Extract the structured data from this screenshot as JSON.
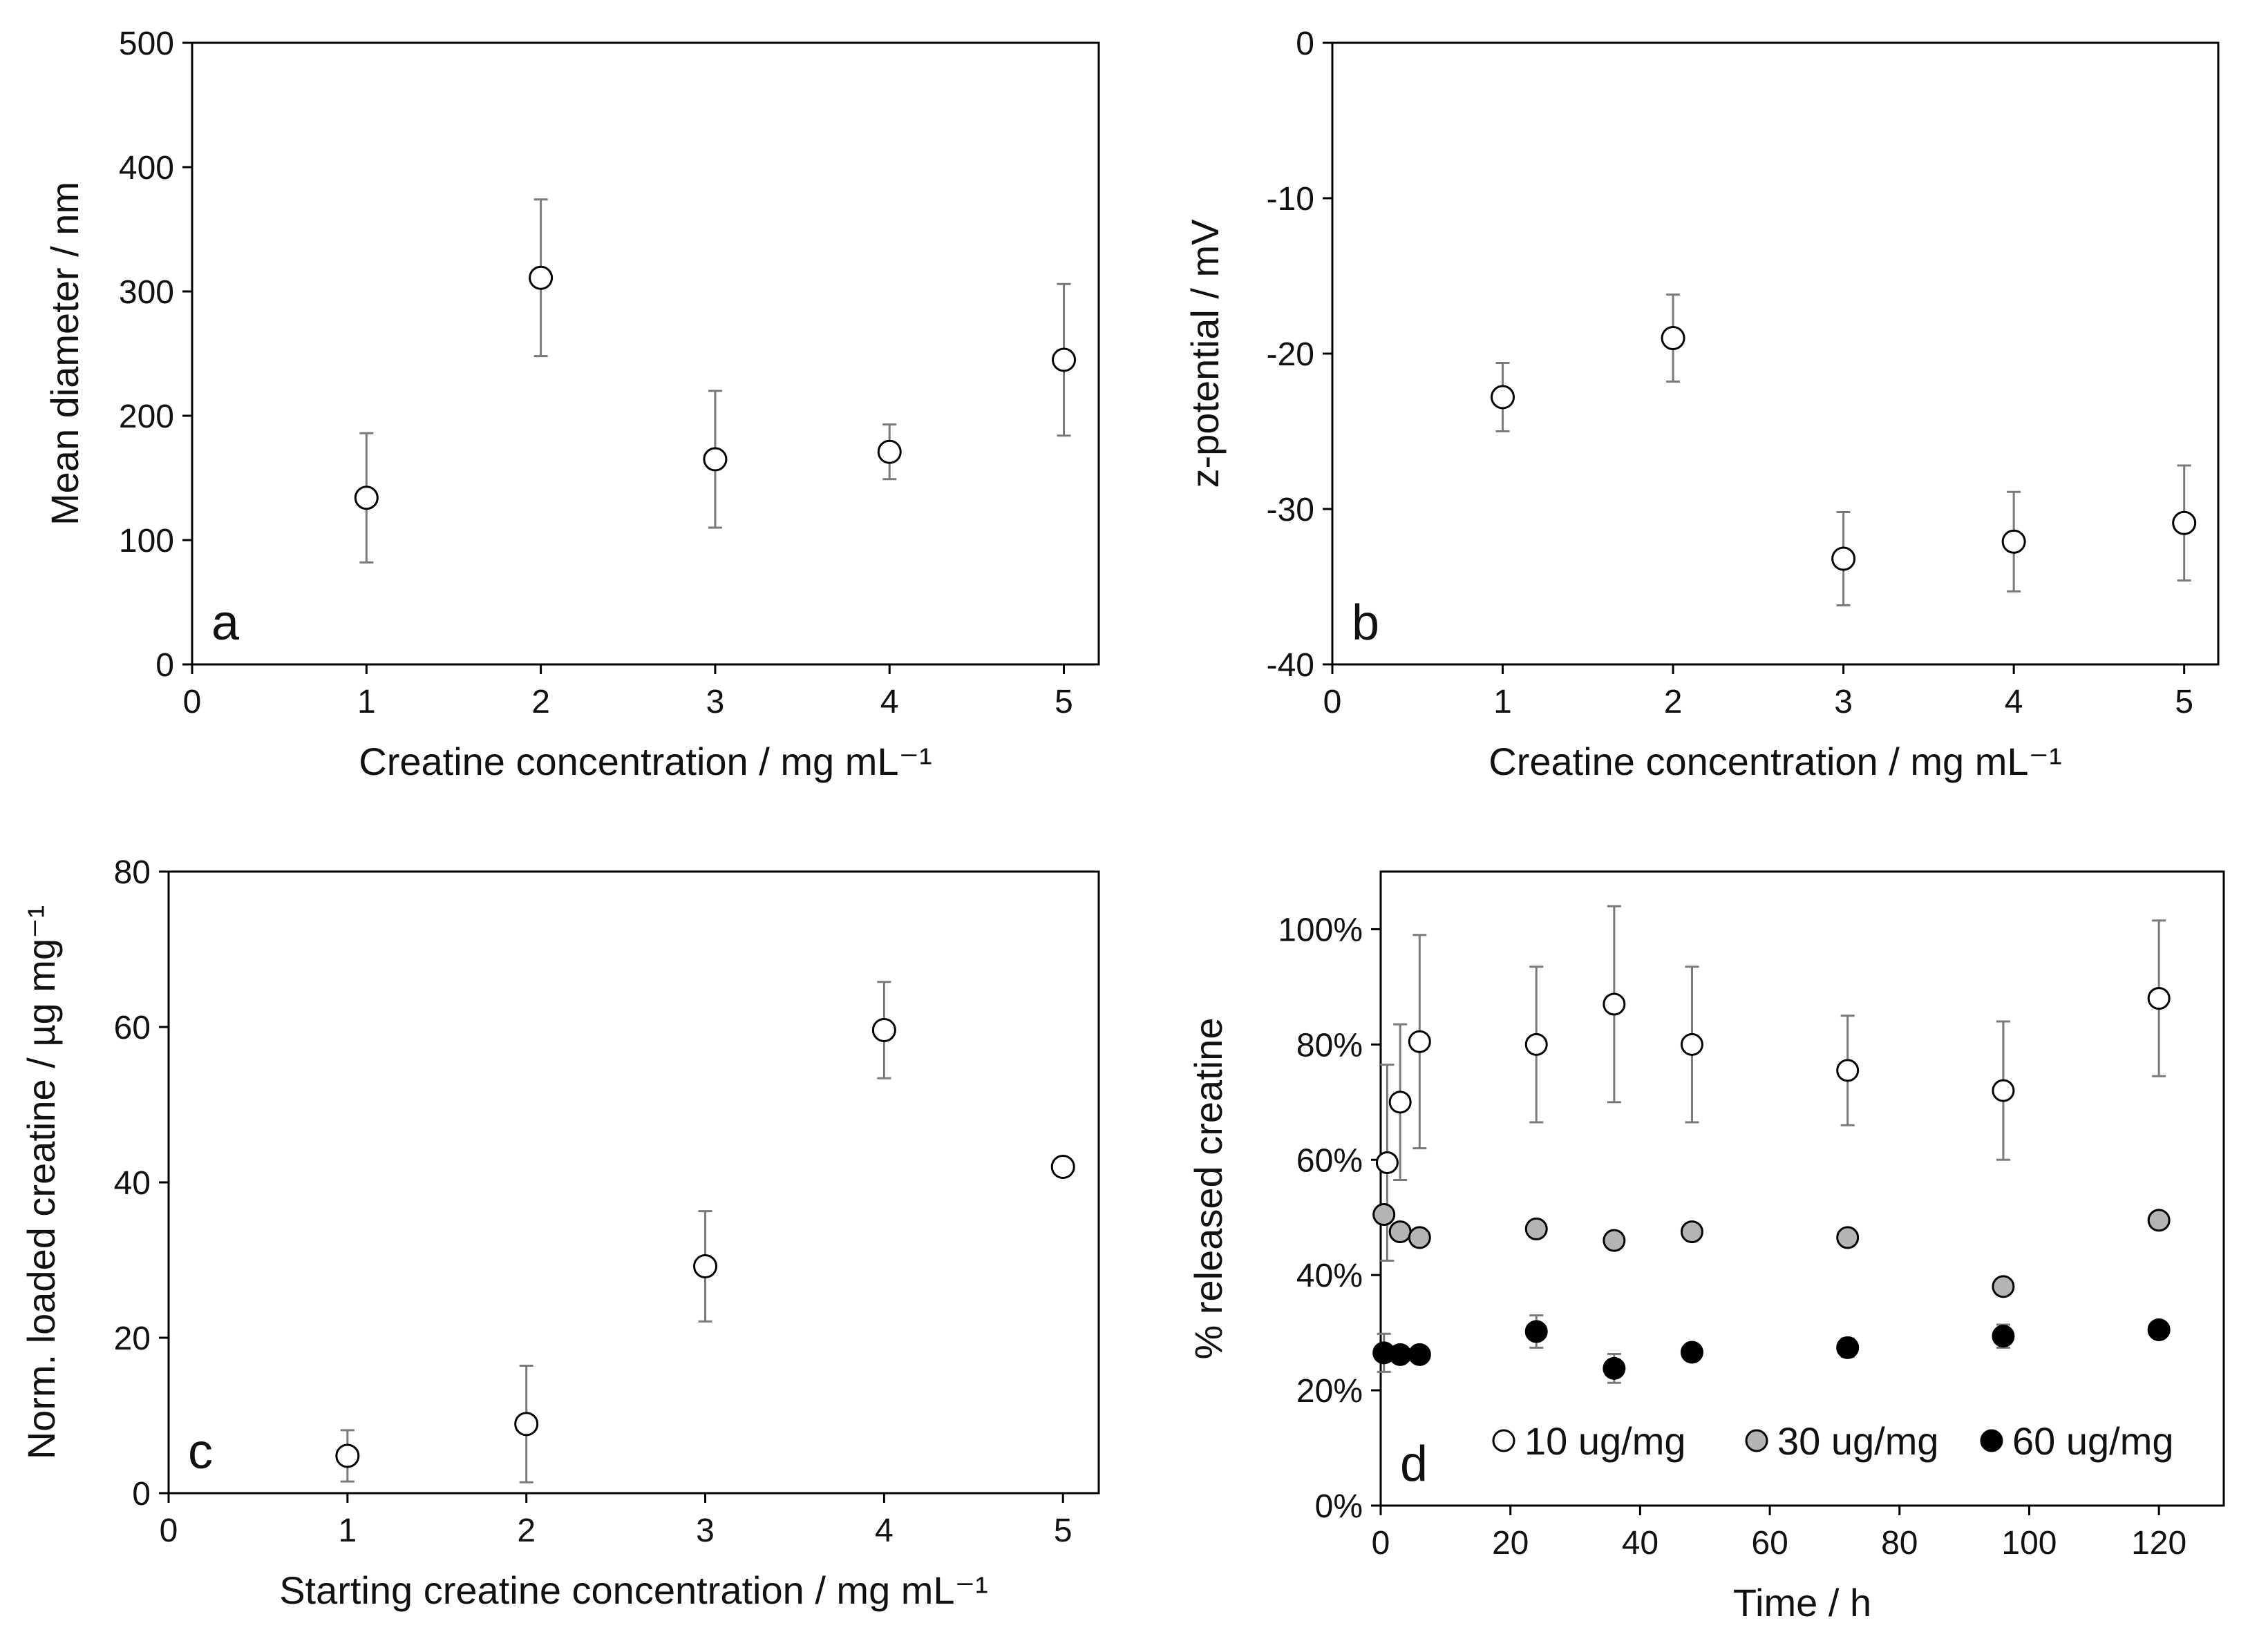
{
  "chart_data": [
    {
      "type": "scatter",
      "panel_label": "a",
      "xlabel": "Creatine concentration / mg mL⁻¹",
      "ylabel": "Mean diameter / nm",
      "xlim": [
        0,
        5.2
      ],
      "ylim": [
        0,
        500
      ],
      "x_ticks": [
        0,
        1,
        2,
        3,
        4,
        5
      ],
      "x_tick_labels": [
        "0",
        "1",
        "2",
        "3",
        "4",
        "5"
      ],
      "y_ticks": [
        0,
        100,
        200,
        300,
        400,
        500
      ],
      "y_tick_labels": [
        "0",
        "100",
        "200",
        "300",
        "400",
        "500"
      ],
      "series": [
        {
          "name": "Mean diameter",
          "marker": "open",
          "x": [
            1,
            2,
            3,
            4,
            5
          ],
          "y": [
            134,
            311,
            165,
            171,
            245
          ],
          "err": [
            52,
            63,
            55,
            22,
            61
          ]
        }
      ]
    },
    {
      "type": "scatter",
      "panel_label": "b",
      "xlabel": "Creatine concentration / mg mL⁻¹",
      "ylabel": "z-potential / mV",
      "xlim": [
        0,
        5.2
      ],
      "ylim": [
        -40,
        0
      ],
      "x_ticks": [
        0,
        1,
        2,
        3,
        4,
        5
      ],
      "x_tick_labels": [
        "0",
        "1",
        "2",
        "3",
        "4",
        "5"
      ],
      "y_ticks": [
        0,
        -10,
        -20,
        -30,
        -40
      ],
      "y_tick_labels": [
        "0",
        "-10",
        "-20",
        "-30",
        "-40"
      ],
      "series": [
        {
          "name": "z-potential",
          "marker": "open",
          "x": [
            1,
            2,
            3,
            4,
            5
          ],
          "y": [
            -22.8,
            -19.0,
            -33.2,
            -32.1,
            -30.9
          ],
          "err": [
            2.2,
            2.8,
            3.0,
            3.2,
            3.7
          ]
        }
      ]
    },
    {
      "type": "scatter",
      "panel_label": "c",
      "xlabel": "Starting creatine concentration / mg mL⁻¹",
      "ylabel": "Norm. loaded creatine / µg mg⁻¹",
      "xlim": [
        0,
        5.2
      ],
      "ylim": [
        0,
        80
      ],
      "x_ticks": [
        0,
        1,
        2,
        3,
        4,
        5
      ],
      "x_tick_labels": [
        "0",
        "1",
        "2",
        "3",
        "4",
        "5"
      ],
      "y_ticks": [
        0,
        20,
        40,
        60,
        80
      ],
      "y_tick_labels": [
        "0",
        "20",
        "40",
        "60",
        "80"
      ],
      "series": [
        {
          "name": "Loaded creatine",
          "marker": "open",
          "x": [
            1,
            2,
            3,
            4,
            5
          ],
          "y": [
            4.8,
            8.9,
            29.2,
            59.6,
            42.0
          ],
          "err": [
            3.3,
            7.5,
            7.1,
            6.2,
            0.5
          ]
        }
      ]
    },
    {
      "type": "scatter",
      "panel_label": "d",
      "xlabel": "Time / h",
      "ylabel": "% released creatine",
      "xlim": [
        0,
        130
      ],
      "ylim": [
        0,
        110
      ],
      "x_ticks": [
        0,
        20,
        40,
        60,
        80,
        100,
        120
      ],
      "x_tick_labels": [
        "0",
        "20",
        "40",
        "60",
        "80",
        "100",
        "120"
      ],
      "y_ticks": [
        0,
        20,
        40,
        60,
        80,
        100
      ],
      "y_tick_labels": [
        "0%",
        "20%",
        "40%",
        "60%",
        "80%",
        "100%"
      ],
      "legend_position": "bottom-inside",
      "series": [
        {
          "name": "10 ug/mg",
          "marker": "open",
          "x": [
            1,
            3,
            6,
            24,
            36,
            48,
            72,
            96,
            120
          ],
          "y": [
            59.5,
            70,
            80.5,
            80,
            87,
            80,
            75.5,
            72,
            88
          ],
          "err": [
            17,
            13.5,
            18.5,
            13.5,
            17,
            13.5,
            9.5,
            12,
            13.5
          ]
        },
        {
          "name": "30 ug/mg",
          "marker": "gray",
          "x": [
            0.5,
            3,
            6,
            24,
            36,
            48,
            72,
            96,
            120
          ],
          "y": [
            50.5,
            47.5,
            46.5,
            48,
            46,
            47.5,
            46.5,
            38,
            49.5
          ],
          "err": [
            0,
            0,
            0,
            0,
            0,
            0,
            0,
            0,
            0
          ]
        },
        {
          "name": "60 ug/mg",
          "marker": "filled",
          "x": [
            0.5,
            3,
            6,
            24,
            36,
            48,
            72,
            96,
            120
          ],
          "y": [
            26.5,
            26.2,
            26.2,
            30.2,
            23.8,
            26.6,
            27.4,
            29.4,
            30.5
          ],
          "err": [
            3.3,
            0,
            0,
            2.8,
            2.5,
            0,
            1.6,
            2,
            0
          ]
        }
      ]
    }
  ]
}
